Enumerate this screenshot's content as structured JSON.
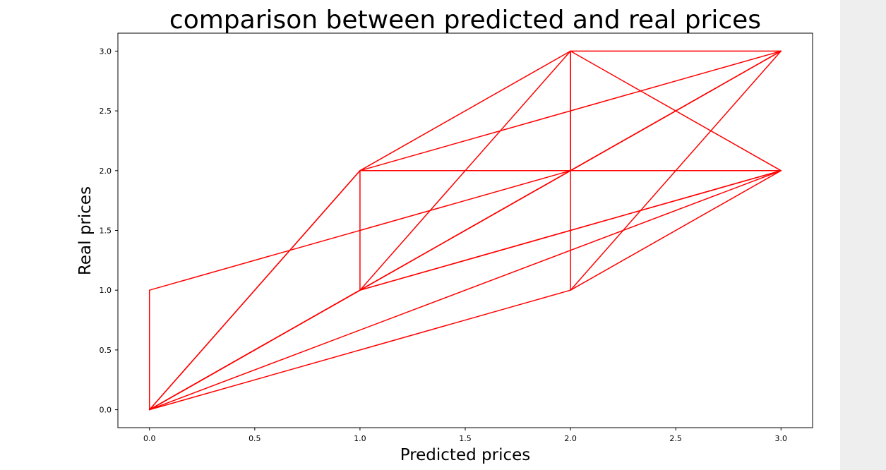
{
  "chart_data": {
    "type": "line",
    "title": "comparison between predicted and real prices",
    "xlabel": "Predicted prices",
    "ylabel": "Real prices",
    "xlim": [
      -0.15,
      3.15
    ],
    "ylim": [
      -0.15,
      3.15
    ],
    "xticks": [
      "0.0",
      "0.5",
      "1.0",
      "1.5",
      "2.0",
      "2.5",
      "3.0"
    ],
    "yticks": [
      "0.0",
      "0.5",
      "1.0",
      "1.5",
      "2.0",
      "2.5",
      "3.0"
    ],
    "grid": false,
    "line_color": "#ff0000",
    "series": [
      {
        "points": [
          [
            0,
            1
          ],
          [
            0,
            0
          ],
          [
            1,
            2
          ],
          [
            2,
            3
          ],
          [
            3,
            3
          ],
          [
            2,
            2
          ],
          [
            1,
            1
          ],
          [
            0,
            0
          ],
          [
            2,
            1
          ],
          [
            3,
            2
          ],
          [
            2,
            2
          ],
          [
            1,
            2
          ],
          [
            1,
            1
          ],
          [
            2,
            3
          ],
          [
            3,
            2
          ],
          [
            1,
            1
          ],
          [
            0,
            0
          ],
          [
            2,
            2
          ],
          [
            3,
            3
          ],
          [
            1,
            2
          ],
          [
            0,
            0
          ],
          [
            3,
            2
          ],
          [
            1,
            1
          ],
          [
            0,
            0
          ],
          [
            3,
            3
          ],
          [
            2,
            1
          ],
          [
            2,
            3
          ],
          [
            2,
            2
          ],
          [
            0,
            1
          ]
        ]
      }
    ]
  }
}
